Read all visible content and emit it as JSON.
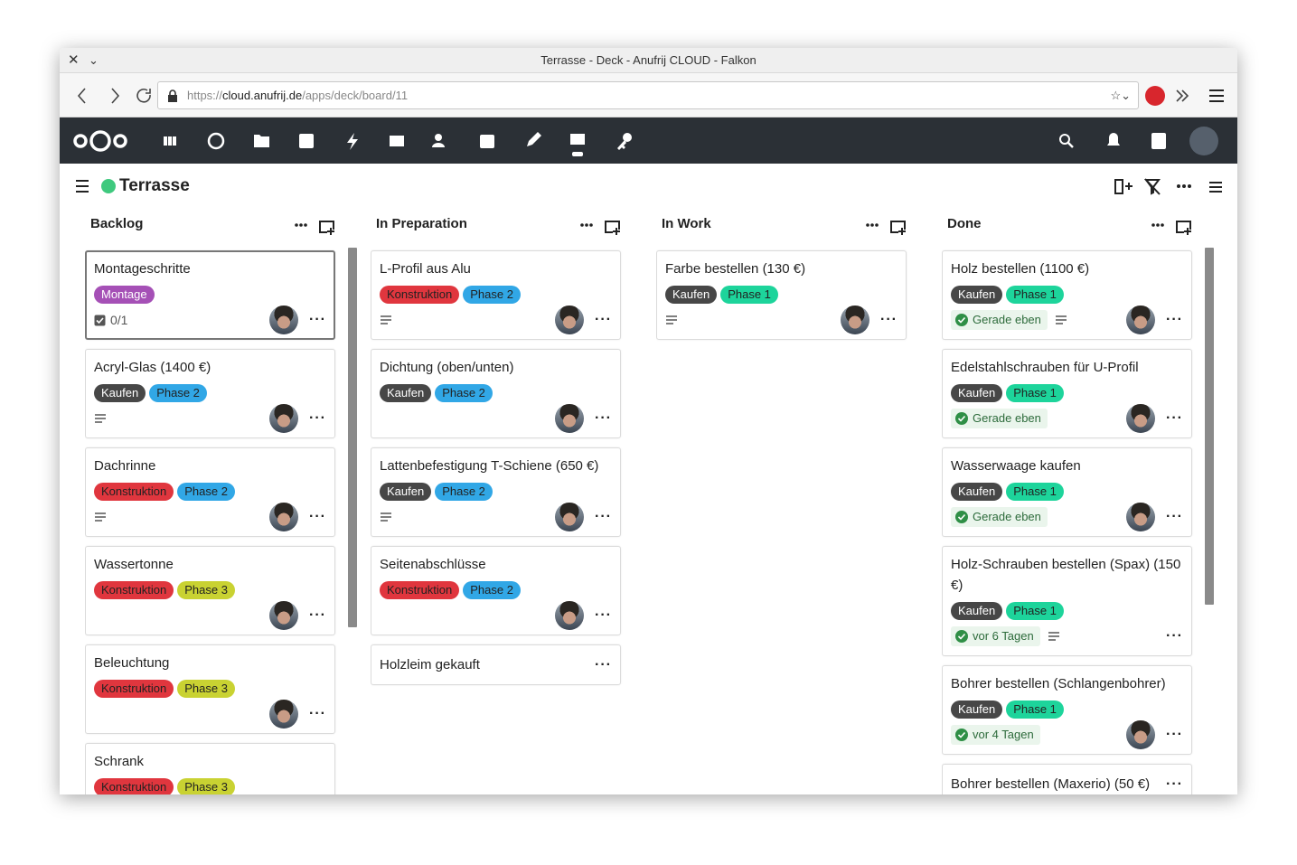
{
  "window": {
    "title": "Terrasse - Deck - Anufrij CLOUD - Falkon"
  },
  "url": {
    "scheme": "https://",
    "host": "cloud.anufrij.de",
    "path": "/apps/deck/board/11"
  },
  "board": {
    "title": "Terrasse",
    "color": "#3fc97e"
  },
  "stacks": [
    {
      "title": "Backlog",
      "cards": [
        {
          "title": "Montageschritte",
          "labels": [
            {
              "text": "Montage",
              "color": "#a550b6"
            }
          ],
          "checklist": "0/1",
          "assigned": true,
          "selected": true
        },
        {
          "title": "Acryl-Glas (1400 €)",
          "labels": [
            {
              "text": "Kaufen",
              "color": "#474747"
            },
            {
              "text": "Phase 2",
              "color": "#31a7e6"
            }
          ],
          "description": true,
          "assigned": true
        },
        {
          "title": "Dachrinne",
          "labels": [
            {
              "text": "Konstruktion",
              "color": "#e0363e"
            },
            {
              "text": "Phase 2",
              "color": "#31a7e6"
            }
          ],
          "description": true,
          "assigned": true
        },
        {
          "title": "Wassertonne",
          "labels": [
            {
              "text": "Konstruktion",
              "color": "#e0363e"
            },
            {
              "text": "Phase 3",
              "color": "#c9d232"
            }
          ],
          "assigned": true
        },
        {
          "title": "Beleuchtung",
          "labels": [
            {
              "text": "Konstruktion",
              "color": "#e0363e"
            },
            {
              "text": "Phase 3",
              "color": "#c9d232"
            }
          ],
          "assigned": true
        },
        {
          "title": "Schrank",
          "labels": [
            {
              "text": "Konstruktion",
              "color": "#e0363e"
            },
            {
              "text": "Phase 3",
              "color": "#c9d232"
            }
          ],
          "assigned": true
        }
      ]
    },
    {
      "title": "In Preparation",
      "cards": [
        {
          "title": "L-Profil aus Alu",
          "labels": [
            {
              "text": "Konstruktion",
              "color": "#e0363e"
            },
            {
              "text": "Phase 2",
              "color": "#31a7e6"
            }
          ],
          "description": true,
          "assigned": true
        },
        {
          "title": "Dichtung (oben/unten)",
          "labels": [
            {
              "text": "Kaufen",
              "color": "#474747"
            },
            {
              "text": "Phase 2",
              "color": "#31a7e6"
            }
          ],
          "assigned": true
        },
        {
          "title": "Lattenbefestigung T-Schiene (650 €)",
          "labels": [
            {
              "text": "Kaufen",
              "color": "#474747"
            },
            {
              "text": "Phase 2",
              "color": "#31a7e6"
            }
          ],
          "description": true,
          "assigned": true
        },
        {
          "title": "Seitenabschlüsse",
          "labels": [
            {
              "text": "Konstruktion",
              "color": "#e0363e"
            },
            {
              "text": "Phase 2",
              "color": "#31a7e6"
            }
          ],
          "assigned": true
        },
        {
          "title": "Holzleim gekauft",
          "labels": []
        }
      ]
    },
    {
      "title": "In Work",
      "cards": [
        {
          "title": "Farbe bestellen (130 €)",
          "labels": [
            {
              "text": "Kaufen",
              "color": "#474747"
            },
            {
              "text": "Phase 1",
              "color": "#1dd49b"
            }
          ],
          "description": true,
          "assigned": true
        }
      ]
    },
    {
      "title": "Done",
      "cards": [
        {
          "title": "Holz bestellen (1100 €)",
          "labels": [
            {
              "text": "Kaufen",
              "color": "#474747"
            },
            {
              "text": "Phase 1",
              "color": "#1dd49b"
            }
          ],
          "due": "Gerade eben",
          "description": true,
          "assigned": true
        },
        {
          "title": "Edelstahlschrauben für U-Profil",
          "labels": [
            {
              "text": "Kaufen",
              "color": "#474747"
            },
            {
              "text": "Phase 1",
              "color": "#1dd49b"
            }
          ],
          "due": "Gerade eben",
          "assigned": true
        },
        {
          "title": "Wasserwaage kaufen",
          "labels": [
            {
              "text": "Kaufen",
              "color": "#474747"
            },
            {
              "text": "Phase 1",
              "color": "#1dd49b"
            }
          ],
          "due": "Gerade eben",
          "assigned": true
        },
        {
          "title": "Holz-Schrauben bestellen (Spax) (150 €)",
          "labels": [
            {
              "text": "Kaufen",
              "color": "#474747"
            },
            {
              "text": "Phase 1",
              "color": "#1dd49b"
            }
          ],
          "due": "vor 6 Tagen",
          "description": true
        },
        {
          "title": "Bohrer bestellen (Schlangenbohrer)",
          "labels": [
            {
              "text": "Kaufen",
              "color": "#474747"
            },
            {
              "text": "Phase 1",
              "color": "#1dd49b"
            }
          ],
          "due": "vor 4 Tagen",
          "assigned": true
        },
        {
          "title": "Bohrer bestellen (Maxerio) (50 €)",
          "labels": []
        }
      ]
    }
  ]
}
